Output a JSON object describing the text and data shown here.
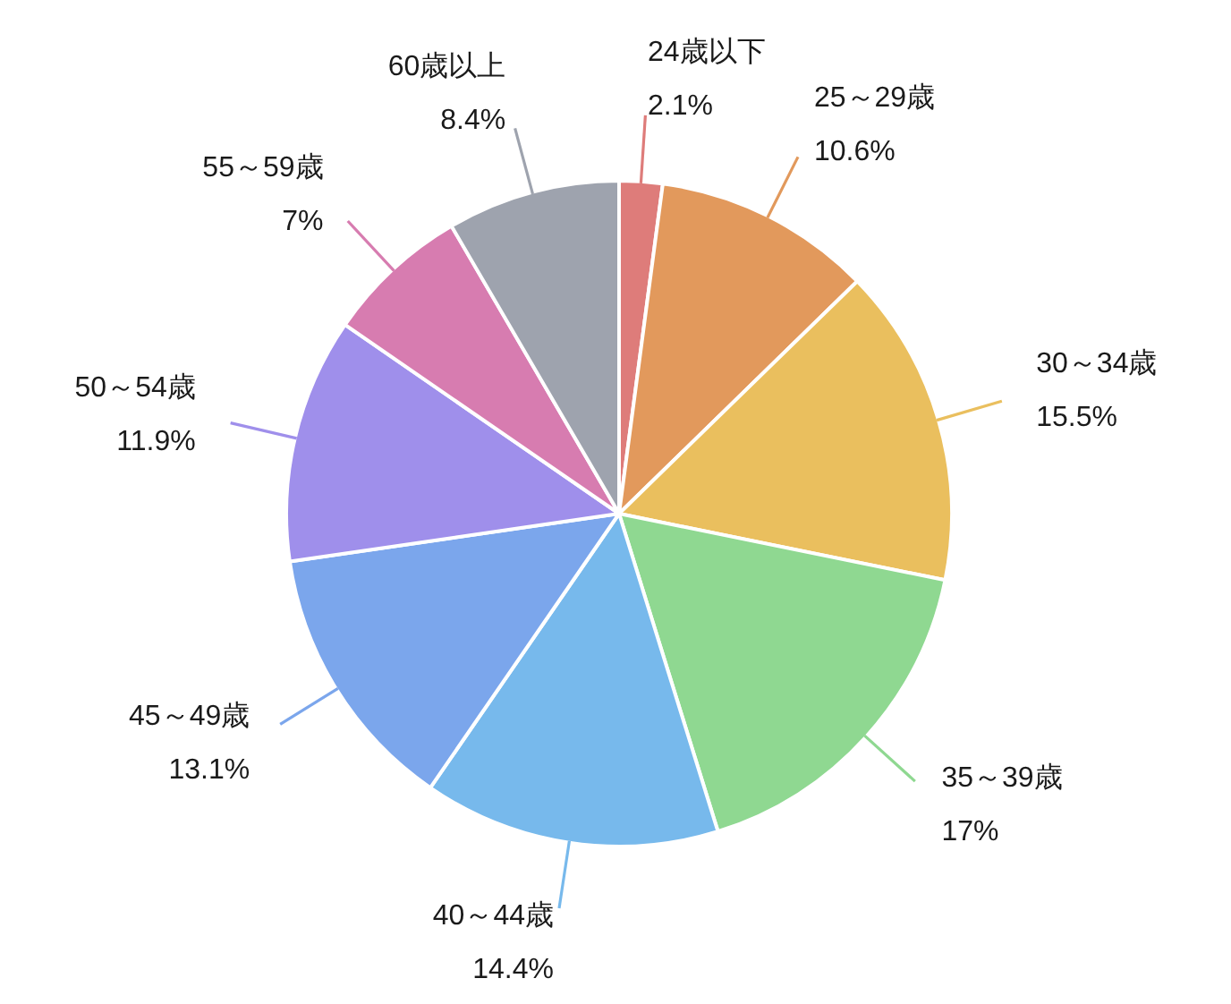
{
  "chart_data": {
    "type": "pie",
    "categories": [
      "24歳以下",
      "25～29歳",
      "30～34歳",
      "35～39歳",
      "40～44歳",
      "45～49歳",
      "50～54歳",
      "55～59歳",
      "60歳以上"
    ],
    "values": [
      2.1,
      10.6,
      15.5,
      17,
      14.4,
      13.1,
      11.9,
      7,
      8.4
    ],
    "value_labels": [
      "2.1%",
      "10.6%",
      "15.5%",
      "17%",
      "14.4%",
      "13.1%",
      "11.9%",
      "7%",
      "8.4%"
    ],
    "colors": [
      "#de7c7a",
      "#e2995c",
      "#eabf5e",
      "#8fd891",
      "#77b9ec",
      "#7ba6ec",
      "#9f8feb",
      "#d77cb0",
      "#9ea3ae"
    ]
  }
}
